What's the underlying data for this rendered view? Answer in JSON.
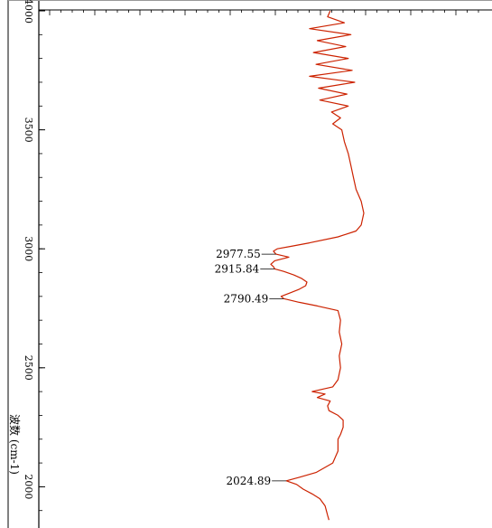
{
  "chart_data": {
    "type": "line",
    "orientation": "vertical-wavenumber",
    "ylabel": "波数 (cm-1)",
    "ylim": [
      4000,
      1850
    ],
    "y_ticks": [
      {
        "value": 4000,
        "label": "4000"
      },
      {
        "value": 3500,
        "label": "3500"
      },
      {
        "value": 3000,
        "label": "3000"
      },
      {
        "value": 2500,
        "label": "2500"
      },
      {
        "value": 2000,
        "label": "2000"
      }
    ],
    "series_color": "#cc2200",
    "series": [
      {
        "wavenumbers": [
          4000,
          3975,
          3950,
          3925,
          3900,
          3875,
          3850,
          3825,
          3800,
          3775,
          3750,
          3725,
          3700,
          3675,
          3650,
          3625,
          3600,
          3575,
          3550,
          3525,
          3500,
          3450,
          3400,
          3350,
          3300,
          3250,
          3200,
          3150,
          3100,
          3075,
          3050,
          3025,
          3010,
          3000,
          2990,
          2977.55,
          2965,
          2950,
          2935,
          2925,
          2915.84,
          2905,
          2890,
          2875,
          2860,
          2845,
          2830,
          2815,
          2800,
          2790.49,
          2775,
          2760,
          2740,
          2700,
          2650,
          2600,
          2550,
          2500,
          2450,
          2420,
          2400,
          2390,
          2375,
          2360,
          2340,
          2320,
          2300,
          2280,
          2250,
          2220,
          2200,
          2150,
          2100,
          2060,
          2040,
          2024.89,
          2010,
          1990,
          1970,
          1950,
          1920,
          1900,
          1880,
          1860
        ],
        "transmittance": [
          46,
          44,
          57,
          30,
          62,
          36,
          58,
          33,
          60,
          35,
          63,
          30,
          65,
          37,
          59,
          38,
          60,
          47,
          54,
          48,
          55,
          57,
          60,
          62,
          64,
          66,
          70,
          72,
          70,
          66,
          52,
          30,
          15,
          5,
          2,
          4,
          14,
          3,
          0,
          2,
          3,
          10,
          18,
          24,
          28,
          27,
          22,
          15,
          8,
          10,
          22,
          36,
          52,
          54,
          53,
          55,
          53,
          54,
          52,
          48,
          32,
          42,
          36,
          46,
          44,
          45,
          52,
          56,
          56,
          54,
          52,
          52,
          48,
          35,
          22,
          12,
          20,
          25,
          32,
          38,
          42,
          43,
          44,
          45
        ]
      }
    ],
    "peak_labels": [
      {
        "wavenumber": 2977.55,
        "label": "2977.55"
      },
      {
        "wavenumber": 2915.84,
        "label": "2915.84"
      },
      {
        "wavenumber": 2790.49,
        "label": "2790.49"
      },
      {
        "wavenumber": 2024.89,
        "label": "2024.89"
      }
    ],
    "grid": false
  }
}
